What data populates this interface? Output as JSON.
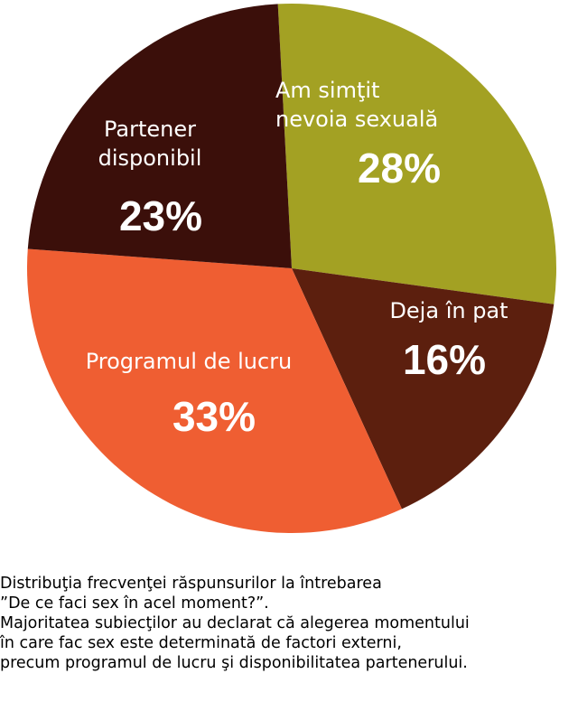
{
  "chart_data": {
    "type": "pie",
    "title": "",
    "slices": [
      {
        "label_lines": [
          "Am simţit",
          "nevoia sexuală"
        ],
        "value": 28,
        "value_label": "28%",
        "color": "#a3a123"
      },
      {
        "label_lines": [
          "Deja în pat"
        ],
        "value": 16,
        "value_label": "16%",
        "color": "#5c1f0e"
      },
      {
        "label_lines": [
          "Programul de lucru"
        ],
        "value": 33,
        "value_label": "33%",
        "color": "#ef5e32"
      },
      {
        "label_lines": [
          "Partener",
          "disponibil"
        ],
        "value": 23,
        "value_label": "23%",
        "color": "#3b0f0a"
      }
    ]
  },
  "caption": {
    "lines": [
      "Distribuţia frecvenţei răspunsurilor la întrebarea",
      "”De ce faci sex în acel moment?”.",
      "Majoritatea subiecţilor au declarat că alegerea momentului",
      "în care fac sex este determinată de factori externi,",
      "precum programul de lucru şi disponibilitatea partenerului."
    ]
  }
}
